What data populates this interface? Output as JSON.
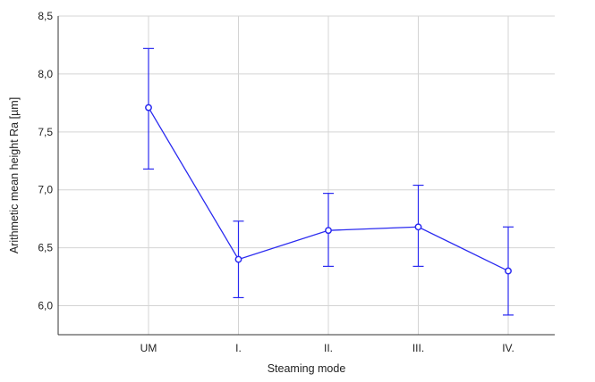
{
  "chart_data": {
    "type": "line",
    "title": "",
    "xlabel": "Steaming mode",
    "ylabel": "Arithmetic mean height Ra  [µm]",
    "categories": [
      "UM",
      "I.",
      "II.",
      "III.",
      "IV."
    ],
    "series": [
      {
        "values": [
          7.71,
          6.4,
          6.65,
          6.68,
          6.3
        ],
        "error_low": [
          7.18,
          6.07,
          6.34,
          6.34,
          5.92
        ],
        "error_high": [
          8.22,
          6.73,
          6.97,
          7.04,
          6.68
        ]
      }
    ],
    "ylim": [
      5.75,
      8.5
    ],
    "yticks": [
      6.0,
      6.5,
      7.0,
      7.5,
      8.0,
      8.5
    ],
    "ytick_labels": [
      "6,0",
      "6,5",
      "7,0",
      "7,5",
      "8,0",
      "8,5"
    ],
    "grid": true,
    "legend": "none",
    "colors": {
      "series": "#2b2bf0",
      "grid": "#d4d4d4",
      "axis": "#333333"
    }
  }
}
